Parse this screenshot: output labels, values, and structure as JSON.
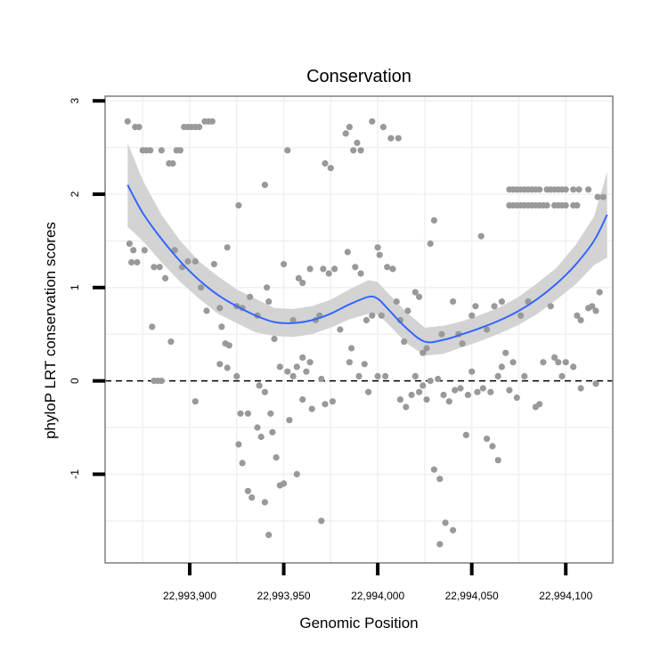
{
  "chart_data": {
    "type": "scatter",
    "title": "Conservation",
    "xlabel": "Genomic Position",
    "ylabel": "phyloP LRT conservation scores",
    "xlim": [
      22993855,
      22994125
    ],
    "ylim": [
      -1.95,
      3.05
    ],
    "x_ticks": [
      {
        "value": 22993900,
        "label": "22,993,900"
      },
      {
        "value": 22993950,
        "label": "22,993,950"
      },
      {
        "value": 22994000,
        "label": "22,994,000"
      },
      {
        "value": 22994050,
        "label": "22,994,050"
      },
      {
        "value": 22994100,
        "label": "22,994,100"
      }
    ],
    "y_ticks": [
      {
        "value": -1,
        "label": "-1"
      },
      {
        "value": 0,
        "label": "0"
      },
      {
        "value": 1,
        "label": "1"
      },
      {
        "value": 2,
        "label": "2"
      },
      {
        "value": 3,
        "label": "3"
      }
    ],
    "reference_line": {
      "y": 0,
      "style": "dashed"
    },
    "series": [
      {
        "name": "phyloP scores",
        "kind": "points",
        "color": "#999999",
        "points": [
          [
            22993867,
            2.78
          ],
          [
            22993871,
            2.72
          ],
          [
            22993873,
            2.72
          ],
          [
            22993875,
            2.47
          ],
          [
            22993877,
            2.47
          ],
          [
            22993879,
            2.47
          ],
          [
            22993885,
            2.47
          ],
          [
            22993889,
            2.33
          ],
          [
            22993891,
            2.33
          ],
          [
            22993893,
            2.47
          ],
          [
            22993895,
            2.47
          ],
          [
            22993897,
            2.72
          ],
          [
            22993899,
            2.72
          ],
          [
            22993901,
            2.72
          ],
          [
            22993903,
            2.72
          ],
          [
            22993905,
            2.72
          ],
          [
            22993908,
            2.78
          ],
          [
            22993910,
            2.78
          ],
          [
            22993912,
            2.78
          ],
          [
            22993920,
            1.43
          ],
          [
            22993926,
            1.88
          ],
          [
            22993940,
            2.1
          ],
          [
            22993952,
            2.47
          ],
          [
            22993972,
            2.33
          ],
          [
            22993975,
            2.28
          ],
          [
            22993983,
            2.65
          ],
          [
            22993985,
            2.72
          ],
          [
            22993987,
            2.47
          ],
          [
            22993989,
            2.55
          ],
          [
            22993991,
            2.47
          ],
          [
            22993997,
            2.78
          ],
          [
            22994003,
            2.72
          ],
          [
            22994007,
            2.6
          ],
          [
            22994011,
            2.6
          ],
          [
            22993868,
            1.47
          ],
          [
            22993870,
            1.4
          ],
          [
            22993869,
            1.27
          ],
          [
            22993872,
            1.27
          ],
          [
            22993876,
            1.4
          ],
          [
            22993880,
            0.58
          ],
          [
            22993881,
            1.22
          ],
          [
            22993884,
            1.22
          ],
          [
            22993887,
            1.1
          ],
          [
            22993890,
            0.42
          ],
          [
            22993892,
            1.4
          ],
          [
            22993896,
            1.22
          ],
          [
            22993899,
            1.28
          ],
          [
            22993903,
            1.28
          ],
          [
            22993906,
            1.0
          ],
          [
            22993909,
            0.75
          ],
          [
            22993913,
            1.25
          ],
          [
            22993916,
            0.78
          ],
          [
            22993917,
            0.58
          ],
          [
            22993919,
            0.4
          ],
          [
            22993921,
            0.38
          ],
          [
            22993925,
            0.8
          ],
          [
            22993928,
            0.78
          ],
          [
            22993932,
            0.9
          ],
          [
            22993936,
            0.7
          ],
          [
            22993941,
            1.0
          ],
          [
            22993942,
            0.85
          ],
          [
            22993945,
            0.45
          ],
          [
            22993950,
            1.25
          ],
          [
            22993955,
            0.65
          ],
          [
            22993958,
            1.1
          ],
          [
            22993960,
            1.05
          ],
          [
            22993964,
            1.2
          ],
          [
            22993967,
            0.65
          ],
          [
            22993969,
            0.7
          ],
          [
            22993971,
            1.2
          ],
          [
            22993974,
            1.15
          ],
          [
            22993977,
            1.2
          ],
          [
            22993980,
            0.55
          ],
          [
            22993984,
            1.38
          ],
          [
            22993986,
            0.35
          ],
          [
            22993988,
            1.22
          ],
          [
            22993991,
            1.15
          ],
          [
            22993994,
            0.65
          ],
          [
            22993997,
            0.7
          ],
          [
            22994000,
            1.43
          ],
          [
            22994001,
            1.35
          ],
          [
            22994002,
            0.7
          ],
          [
            22994005,
            1.22
          ],
          [
            22994008,
            1.2
          ],
          [
            22994010,
            0.85
          ],
          [
            22994012,
            0.65
          ],
          [
            22994014,
            0.42
          ],
          [
            22994016,
            0.75
          ],
          [
            22994020,
            0.95
          ],
          [
            22994022,
            0.9
          ],
          [
            22994024,
            0.3
          ],
          [
            22994026,
            0.35
          ],
          [
            22994028,
            1.47
          ],
          [
            22994030,
            1.72
          ],
          [
            22994034,
            0.5
          ],
          [
            22994040,
            0.85
          ],
          [
            22994043,
            0.5
          ],
          [
            22994045,
            0.4
          ],
          [
            22994050,
            0.7
          ],
          [
            22994052,
            0.8
          ],
          [
            22994055,
            1.55
          ],
          [
            22994058,
            0.55
          ],
          [
            22994062,
            0.8
          ],
          [
            22994066,
            0.85
          ],
          [
            22994068,
            0.3
          ],
          [
            22994072,
            0.2
          ],
          [
            22994076,
            0.7
          ],
          [
            22994080,
            0.85
          ],
          [
            22994088,
            0.2
          ],
          [
            22994092,
            0.8
          ],
          [
            22994096,
            0.2
          ],
          [
            22994100,
            0.2
          ],
          [
            22994106,
            0.7
          ],
          [
            22994108,
            0.65
          ],
          [
            22994112,
            0.78
          ],
          [
            22994114,
            0.8
          ],
          [
            22994116,
            0.75
          ],
          [
            22994118,
            0.95
          ],
          [
            22993881,
            0.0
          ],
          [
            22993883,
            0.0
          ],
          [
            22993885,
            0.0
          ],
          [
            22993903,
            -0.22
          ],
          [
            22993916,
            0.18
          ],
          [
            22993920,
            0.14
          ],
          [
            22993925,
            0.05
          ],
          [
            22993927,
            -0.35
          ],
          [
            22993931,
            -0.35
          ],
          [
            22993937,
            -0.05
          ],
          [
            22993940,
            -0.12
          ],
          [
            22993943,
            -0.35
          ],
          [
            22993948,
            0.15
          ],
          [
            22993952,
            0.1
          ],
          [
            22993955,
            0.05
          ],
          [
            22993957,
            0.15
          ],
          [
            22993960,
            0.25
          ],
          [
            22993962,
            0.1
          ],
          [
            22993964,
            0.2
          ],
          [
            22993970,
            0.02
          ],
          [
            22993972,
            -0.25
          ],
          [
            22993976,
            -0.22
          ],
          [
            22993985,
            0.2
          ],
          [
            22993990,
            0.05
          ],
          [
            22993993,
            0.18
          ],
          [
            22993995,
            -0.12
          ],
          [
            22994000,
            0.05
          ],
          [
            22994004,
            0.05
          ],
          [
            22994012,
            -0.2
          ],
          [
            22994015,
            -0.28
          ],
          [
            22994018,
            -0.15
          ],
          [
            22994020,
            0.05
          ],
          [
            22994022,
            -0.12
          ],
          [
            22994024,
            -0.05
          ],
          [
            22994026,
            -0.2
          ],
          [
            22994028,
            0.0
          ],
          [
            22994032,
            0.02
          ],
          [
            22994035,
            -0.15
          ],
          [
            22994038,
            -0.22
          ],
          [
            22994041,
            -0.1
          ],
          [
            22994044,
            -0.08
          ],
          [
            22994048,
            -0.15
          ],
          [
            22994050,
            0.1
          ],
          [
            22994053,
            -0.12
          ],
          [
            22994056,
            -0.08
          ],
          [
            22994060,
            -0.12
          ],
          [
            22994064,
            0.05
          ],
          [
            22994066,
            0.15
          ],
          [
            22994070,
            -0.1
          ],
          [
            22994074,
            -0.18
          ],
          [
            22994078,
            0.05
          ],
          [
            22994086,
            -0.25
          ],
          [
            22994094,
            0.25
          ],
          [
            22994098,
            0.05
          ],
          [
            22994104,
            0.15
          ],
          [
            22994108,
            -0.08
          ],
          [
            22994116,
            -0.03
          ],
          [
            22993926,
            -0.68
          ],
          [
            22993928,
            -0.88
          ],
          [
            22993931,
            -1.18
          ],
          [
            22993933,
            -1.25
          ],
          [
            22993936,
            -0.5
          ],
          [
            22993938,
            -0.6
          ],
          [
            22993940,
            -1.3
          ],
          [
            22993942,
            -1.65
          ],
          [
            22993944,
            -0.55
          ],
          [
            22993946,
            -0.82
          ],
          [
            22993948,
            -1.12
          ],
          [
            22993950,
            -1.1
          ],
          [
            22993953,
            -0.42
          ],
          [
            22993957,
            -1.0
          ],
          [
            22993960,
            -0.2
          ],
          [
            22993965,
            -0.3
          ],
          [
            22993970,
            -1.5
          ],
          [
            22994030,
            -0.95
          ],
          [
            22994033,
            -1.05
          ],
          [
            22994036,
            -1.52
          ],
          [
            22994033,
            -1.75
          ],
          [
            22994040,
            -1.6
          ],
          [
            22994047,
            -0.58
          ],
          [
            22994058,
            -0.62
          ],
          [
            22994061,
            -0.7
          ],
          [
            22994064,
            -0.85
          ],
          [
            22994084,
            -0.28
          ],
          [
            22994070,
            2.05
          ],
          [
            22994072,
            2.05
          ],
          [
            22994074,
            2.05
          ],
          [
            22994076,
            2.05
          ],
          [
            22994078,
            2.05
          ],
          [
            22994080,
            2.05
          ],
          [
            22994082,
            2.05
          ],
          [
            22994084,
            2.05
          ],
          [
            22994086,
            2.05
          ],
          [
            22994090,
            2.05
          ],
          [
            22994092,
            2.05
          ],
          [
            22994094,
            2.05
          ],
          [
            22994096,
            2.05
          ],
          [
            22994098,
            2.05
          ],
          [
            22994100,
            2.05
          ],
          [
            22994104,
            2.05
          ],
          [
            22994107,
            2.05
          ],
          [
            22994112,
            2.05
          ],
          [
            22994117,
            1.97
          ],
          [
            22994120,
            1.97
          ],
          [
            22994070,
            1.88
          ],
          [
            22994072,
            1.88
          ],
          [
            22994074,
            1.88
          ],
          [
            22994076,
            1.88
          ],
          [
            22994078,
            1.88
          ],
          [
            22994080,
            1.88
          ],
          [
            22994082,
            1.88
          ],
          [
            22994084,
            1.88
          ],
          [
            22994086,
            1.88
          ],
          [
            22994088,
            1.88
          ],
          [
            22994090,
            1.88
          ],
          [
            22994094,
            1.88
          ],
          [
            22994096,
            1.88
          ],
          [
            22994098,
            1.88
          ],
          [
            22994100,
            1.88
          ],
          [
            22994104,
            1.88
          ],
          [
            22994106,
            1.88
          ]
        ]
      },
      {
        "name": "loess fit",
        "kind": "line",
        "color": "#3366ff",
        "band_color": "#d3d3d3",
        "x": [
          22993867,
          22993875,
          22993885,
          22993895,
          22993905,
          22993915,
          22993925,
          22993935,
          22993945,
          22993955,
          22993965,
          22993975,
          22993985,
          22993995,
          22994000,
          22994005,
          22994015,
          22994025,
          22994035,
          22994045,
          22994055,
          22994065,
          22994075,
          22994085,
          22994095,
          22994105,
          22994115,
          22994122
        ],
        "y": [
          2.1,
          1.8,
          1.52,
          1.28,
          1.08,
          0.92,
          0.8,
          0.7,
          0.63,
          0.62,
          0.65,
          0.72,
          0.82,
          0.9,
          0.88,
          0.78,
          0.57,
          0.42,
          0.44,
          0.5,
          0.57,
          0.65,
          0.75,
          0.88,
          1.04,
          1.24,
          1.5,
          1.78
        ],
        "lower": [
          1.65,
          1.5,
          1.27,
          1.06,
          0.88,
          0.72,
          0.62,
          0.52,
          0.48,
          0.47,
          0.5,
          0.57,
          0.66,
          0.72,
          0.71,
          0.62,
          0.41,
          0.27,
          0.29,
          0.36,
          0.43,
          0.51,
          0.6,
          0.72,
          0.87,
          1.03,
          1.24,
          1.32
        ],
        "upper": [
          2.55,
          2.15,
          1.78,
          1.5,
          1.28,
          1.12,
          0.98,
          0.88,
          0.78,
          0.77,
          0.8,
          0.87,
          0.98,
          1.08,
          1.06,
          0.95,
          0.74,
          0.57,
          0.59,
          0.64,
          0.71,
          0.79,
          0.9,
          1.05,
          1.21,
          1.45,
          1.76,
          2.24
        ]
      }
    ]
  }
}
